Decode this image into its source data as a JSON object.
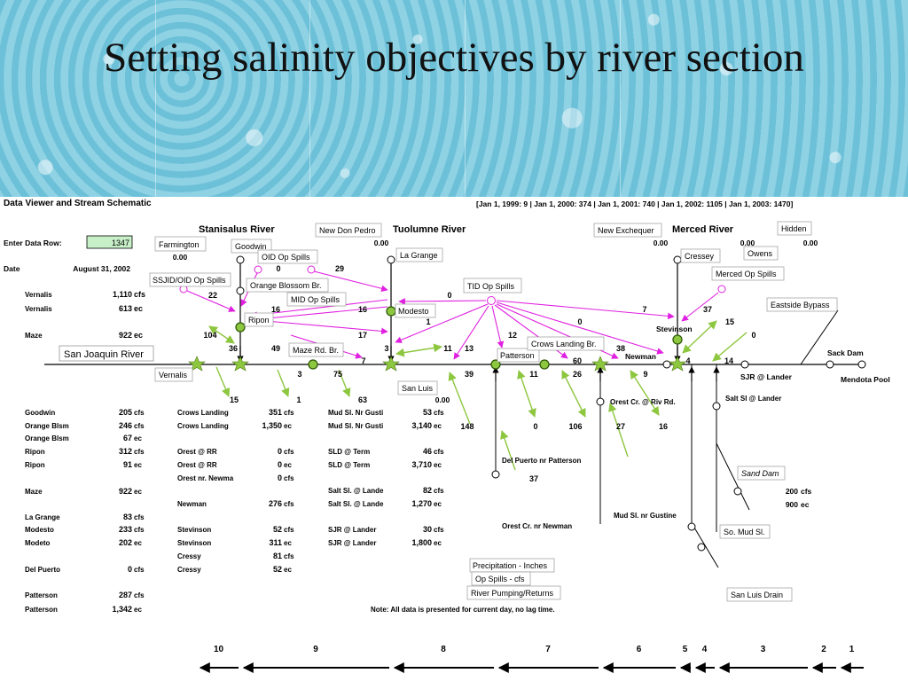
{
  "title": "Setting salinity objectives by river section",
  "viewer": {
    "title": "Data Viewer and Stream Schematic",
    "row_index": "[Jan 1, 1999: 9 | Jan 1, 2000: 374 | Jan 1, 2001: 740 | Jan 1, 2002: 1105 | Jan 1, 2003: 1470]",
    "enter_label": "Enter Data Row:",
    "data_row": "1347",
    "date_label": "Date",
    "date_value": "August 31, 2002",
    "note": "Note: All data is presented for current day, no lag time."
  },
  "rivers": {
    "stanislaus": "Stanisalus River",
    "tuolumne": "Tuolumne River",
    "merced": "Merced River",
    "san_joaquin": "San Joaquin River"
  },
  "boxes": {
    "farmington": "Farmington",
    "goodwin": "Goodwin",
    "oid_op_spills": "OID Op Spills",
    "ssjid_oid": "SSJID/OID Op Spills",
    "orange_blossom": "Orange Blossom Br.",
    "mid_op_spills": "MID Op Spills",
    "ripon": "Ripon",
    "maze_rd": "Maze Rd. Br.",
    "vernalis": "Vernalis",
    "new_don_pedro": "New Don Pedro",
    "la_grange": "La Grange",
    "modesto": "Modesto",
    "san_luis": "San Luis",
    "tid_op_spills": "TID Op Spills",
    "patterson": "Patterson",
    "crows_landing": "Crows Landing Br.",
    "new_exchequer": "New Exchequer",
    "cressey": "Cressey",
    "hidden": "Hidden",
    "owens": "Owens",
    "merced_op_spills": "Merced Op Spills",
    "eastside_bypass": "Eastside Bypass",
    "sand_dam": "Sand Dam",
    "so_mud_sl": "So. Mud Sl.",
    "san_luis_drain": "San Luis Drain",
    "precip": "Precipitation - Inches",
    "op_spills_cfs": "Op Spills - cfs",
    "river_pumping": "River Pumping/Returns"
  },
  "labels": {
    "farmington_val": "0.00",
    "new_don_pedro_val": "0.00",
    "new_exchequer_val": "0.00",
    "hidden_val": "0.00",
    "owens_val": "0.00",
    "san_luis_val": "0.00",
    "newman": "Newman",
    "stevinson": "Stevinson",
    "sack_dam": "Sack Dam",
    "mendota_pool": "Mendota Pool",
    "sjr_lander": "SJR @ Lander",
    "salt_sl_lander": "Salt Sl @ Lander",
    "orest_riv_rd": "Orest Cr. @ Riv Rd.",
    "del_puerto": "Del Puerto nr Patterson",
    "orest_newman": "Orest Cr. nr Newman",
    "mud_sl_gustine": "Mud Sl. nr Gustine",
    "sand_dam_flow": "200",
    "sand_dam_flow_unit": "cfs",
    "sand_dam_ec": "900",
    "sand_dam_ec_unit": "ec"
  },
  "numbers": {
    "n22": "22",
    "n0a": "0",
    "n29": "29",
    "n16a": "16",
    "n16b": "16",
    "n0b": "0",
    "n1": "1",
    "n17": "17",
    "n49": "49",
    "n36": "36",
    "n104": "104",
    "n7a": "7",
    "n3a": "3",
    "n11a": "11",
    "n13": "13",
    "n12": "12",
    "n0c": "0",
    "n38": "38",
    "n7b": "7",
    "n37a": "37",
    "n15a": "15",
    "n0d": "0",
    "n60": "60",
    "n4": "4",
    "n14": "14",
    "n11b": "11",
    "n26": "26",
    "n9": "9",
    "n15b": "15",
    "n1b": "1",
    "n63": "63",
    "n3b": "3",
    "n75": "75",
    "n39": "39",
    "n148": "148",
    "n0e": "0",
    "n106": "106",
    "n27": "27",
    "n16c": "16",
    "n37b": "37"
  },
  "left_top_rows": [
    {
      "name": "Vernalis",
      "value": "1,110",
      "unit": "cfs"
    },
    {
      "name": "Vernalis",
      "value": "613",
      "unit": "ec"
    },
    {
      "name": "Maze",
      "value": "922",
      "unit": "ec"
    }
  ],
  "table_col1": [
    {
      "name": "Goodwin",
      "value": "205",
      "unit": "cfs"
    },
    {
      "name": "Orange Blsm",
      "value": "246",
      "unit": "cfs"
    },
    {
      "name": "Orange Blsm",
      "value": "67",
      "unit": "ec"
    },
    {
      "name": "Ripon",
      "value": "312",
      "unit": "cfs"
    },
    {
      "name": "Ripon",
      "value": "91",
      "unit": "ec"
    },
    {
      "name": "Maze",
      "value": "922",
      "unit": "ec"
    },
    {
      "name": "La Grange",
      "value": "83",
      "unit": "cfs"
    },
    {
      "name": "Modesto",
      "value": "233",
      "unit": "cfs"
    },
    {
      "name": "Modeto",
      "value": "202",
      "unit": "ec"
    },
    {
      "name": "Del Puerto",
      "value": "0",
      "unit": "cfs"
    },
    {
      "name": "Patterson",
      "value": "287",
      "unit": "cfs"
    },
    {
      "name": "Patterson",
      "value": "1,342",
      "unit": "ec"
    }
  ],
  "table_col2": [
    {
      "name": "Crows Landing",
      "value": "351",
      "unit": "cfs"
    },
    {
      "name": "Crows Landing",
      "value": "1,350",
      "unit": "ec"
    },
    {
      "name": "Orest @ RR",
      "value": "0",
      "unit": "cfs"
    },
    {
      "name": "Orest @ RR",
      "value": "0",
      "unit": "ec"
    },
    {
      "name": "Orest nr. Newma",
      "value": "0",
      "unit": "cfs"
    },
    {
      "name": "Newman",
      "value": "276",
      "unit": "cfs"
    },
    {
      "name": "Stevinson",
      "value": "52",
      "unit": "cfs"
    },
    {
      "name": "Stevinson",
      "value": "311",
      "unit": "ec"
    },
    {
      "name": "Cressy",
      "value": "81",
      "unit": "cfs"
    },
    {
      "name": "Cressy",
      "value": "52",
      "unit": "ec"
    }
  ],
  "table_col3": [
    {
      "name": "Mud Sl. Nr Gusti",
      "value": "53",
      "unit": "cfs"
    },
    {
      "name": "Mud Sl. Nr Gusti",
      "value": "3,140",
      "unit": "ec"
    },
    {
      "name": "SLD @ Term",
      "value": "46",
      "unit": "cfs"
    },
    {
      "name": "SLD @ Term",
      "value": "3,710",
      "unit": "ec"
    },
    {
      "name": "Salt Sl. @ Lande",
      "value": "82",
      "unit": "cfs"
    },
    {
      "name": "Salt Sl. @ Lande",
      "value": "1,270",
      "unit": "ec"
    },
    {
      "name": "SJR @ Lander",
      "value": "30",
      "unit": "cfs"
    },
    {
      "name": "SJR @ Lander",
      "value": "1,800",
      "unit": "ec"
    }
  ],
  "sections": [
    "10",
    "9",
    "8",
    "7",
    "6",
    "5",
    "4",
    "3",
    "2",
    "1"
  ],
  "colors": {
    "accent_magenta": "#e020e0",
    "accent_green": "#8dc63f",
    "input_fill": "#c8f0c8"
  }
}
